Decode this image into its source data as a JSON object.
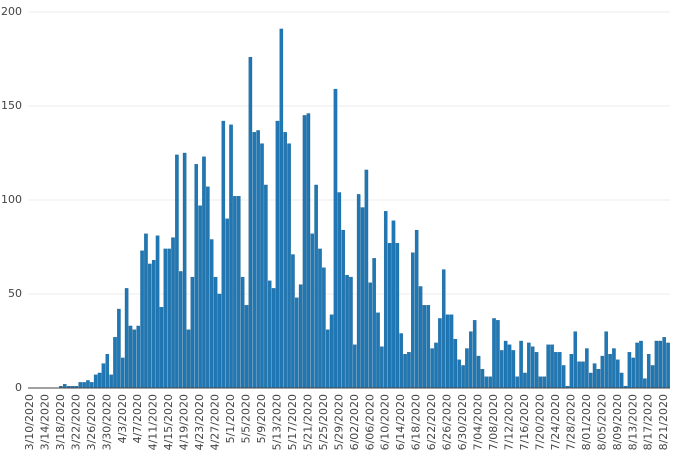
{
  "chart_data": {
    "type": "bar",
    "categories": [
      "3/10/2020",
      null,
      null,
      null,
      "3/14/2020",
      null,
      null,
      null,
      "3/18/2020",
      null,
      null,
      null,
      "3/22/2020",
      null,
      null,
      null,
      "3/26/2020",
      null,
      null,
      null,
      "3/30/2020",
      null,
      null,
      null,
      "4/3/2020",
      null,
      null,
      null,
      "4/7/2020",
      null,
      null,
      null,
      "4/11/2020",
      null,
      null,
      null,
      "4/15/2020",
      null,
      null,
      null,
      "4/19/2020",
      null,
      null,
      null,
      "4/23/2020",
      null,
      null,
      null,
      "4/27/2020",
      null,
      null,
      null,
      "5/1/2020",
      null,
      null,
      null,
      "5/5/2020",
      null,
      null,
      null,
      "5/9/2020",
      null,
      null,
      null,
      "5/13/2020",
      null,
      null,
      null,
      "5/17/2020",
      null,
      null,
      null,
      "5/21/2020",
      null,
      null,
      null,
      "5/25/2020",
      null,
      null,
      null,
      "5/29/2020",
      null,
      null,
      null,
      "6/02/2020",
      null,
      null,
      null,
      "6/06/2020",
      null,
      null,
      null,
      "6/10/2020",
      null,
      null,
      null,
      "6/14/2020",
      null,
      null,
      null,
      "6/18/2020",
      null,
      null,
      null,
      "6/22/2020",
      null,
      null,
      null,
      "6/26/2020",
      null,
      null,
      null,
      "6/30/2020",
      null,
      null,
      null,
      "7/04/2020",
      null,
      null,
      null,
      "7/08/2020",
      null,
      null,
      null,
      "7/12/2020",
      null,
      null,
      null,
      "7/16/2020",
      null,
      null,
      null,
      "7/20/2020",
      null,
      null,
      null,
      "7/24/2020",
      null,
      null,
      null,
      "7/28/2020",
      null,
      null,
      null,
      "8/01/2020",
      null,
      null,
      null,
      "8/05/2020",
      null,
      null,
      null,
      "8/09/2020",
      null,
      null,
      null,
      "8/13/2020",
      null,
      null,
      null,
      "8/17/2020",
      null,
      null,
      null,
      "8/21/2020",
      null
    ],
    "values": [
      0,
      0,
      0,
      0,
      0,
      0,
      0,
      0,
      1,
      2,
      1,
      1,
      1,
      3,
      3,
      4,
      3,
      7,
      8,
      13,
      18,
      7,
      27,
      42,
      16,
      53,
      33,
      31,
      33,
      73,
      82,
      66,
      68,
      81,
      43,
      74,
      74,
      80,
      124,
      62,
      125,
      31,
      59,
      119,
      97,
      123,
      107,
      79,
      59,
      50,
      142,
      90,
      140,
      102,
      102,
      59,
      44,
      176,
      136,
      137,
      130,
      108,
      57,
      53,
      142,
      191,
      136,
      130,
      71,
      48,
      55,
      145,
      146,
      82,
      108,
      74,
      64,
      31,
      39,
      159,
      104,
      84,
      60,
      59,
      23,
      103,
      96,
      116,
      56,
      69,
      40,
      22,
      94,
      77,
      89,
      77,
      29,
      18,
      19,
      72,
      84,
      54,
      44,
      44,
      21,
      24,
      37,
      63,
      39,
      39,
      26,
      15,
      12,
      21,
      30,
      36,
      17,
      10,
      6,
      6,
      37,
      36,
      20,
      25,
      23,
      20,
      6,
      25,
      8,
      24,
      22,
      19,
      6,
      6,
      23,
      23,
      19,
      19,
      12,
      1,
      18,
      30,
      14,
      14,
      21,
      8,
      13,
      10,
      17,
      30,
      18,
      21,
      15,
      8,
      1,
      19,
      16,
      24,
      25,
      5,
      18,
      12,
      25,
      25,
      27,
      24
    ],
    "color": "#1f77b4",
    "ylim": [
      0,
      200
    ],
    "yticks": [
      0,
      50,
      100,
      150,
      200
    ],
    "grid": true
  }
}
